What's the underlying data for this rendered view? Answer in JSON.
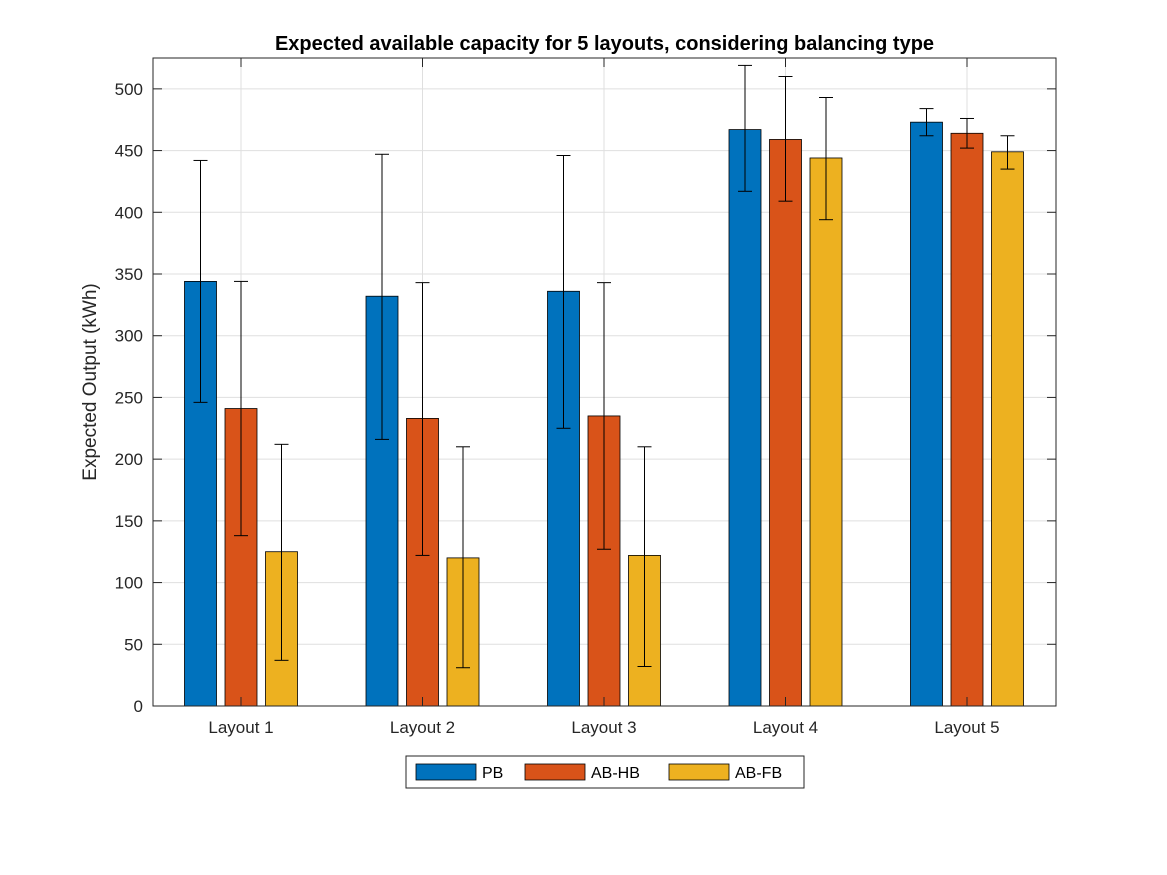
{
  "chart_data": {
    "type": "bar",
    "title": "Expected available capacity for 5 layouts, considering balancing type",
    "xlabel": "",
    "ylabel": "Expected Output (kWh)",
    "ylim": [
      0,
      525
    ],
    "yticks": [
      0,
      50,
      100,
      150,
      200,
      250,
      300,
      350,
      400,
      450,
      500
    ],
    "grid": true,
    "legend_position": "bottom-center",
    "categories": [
      "Layout 1",
      "Layout 2",
      "Layout 3",
      "Layout 4",
      "Layout 5"
    ],
    "series": [
      {
        "name": "PB",
        "color": "#0072bd",
        "values": [
          344,
          332,
          336,
          467,
          473
        ],
        "error_low": [
          246,
          216,
          225,
          417,
          462
        ],
        "error_high": [
          442,
          447,
          446,
          519,
          484
        ]
      },
      {
        "name": "AB-HB",
        "color": "#d95319",
        "values": [
          241,
          233,
          235,
          459,
          464
        ],
        "error_low": [
          138,
          122,
          127,
          409,
          452
        ],
        "error_high": [
          344,
          343,
          343,
          510,
          476
        ]
      },
      {
        "name": "AB-FB",
        "color": "#edb120",
        "values": [
          125,
          120,
          122,
          444,
          449
        ],
        "error_low": [
          37,
          31,
          32,
          394,
          435
        ],
        "error_high": [
          212,
          210,
          210,
          493,
          462
        ]
      }
    ]
  }
}
